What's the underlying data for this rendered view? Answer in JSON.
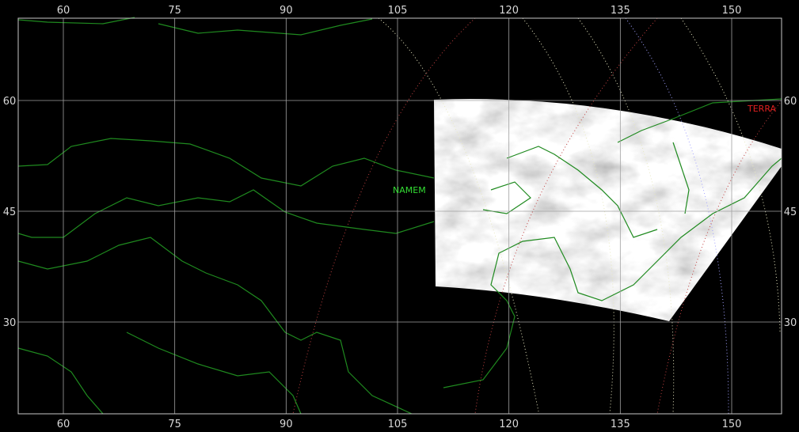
{
  "map": {
    "longitude_ticks": [
      60,
      75,
      90,
      105,
      120,
      135,
      150
    ],
    "latitude_ticks": [
      60,
      45,
      30
    ],
    "labels": {
      "station": "NAMEM",
      "satellite": "TERRA"
    },
    "colors": {
      "background": "#000000",
      "grid": "#a0a0a0",
      "coastline": "#1f8a1f",
      "station_label": "#33dd33",
      "satellite_label": "#e02020",
      "tick_text": "#d8d8d8"
    }
  }
}
